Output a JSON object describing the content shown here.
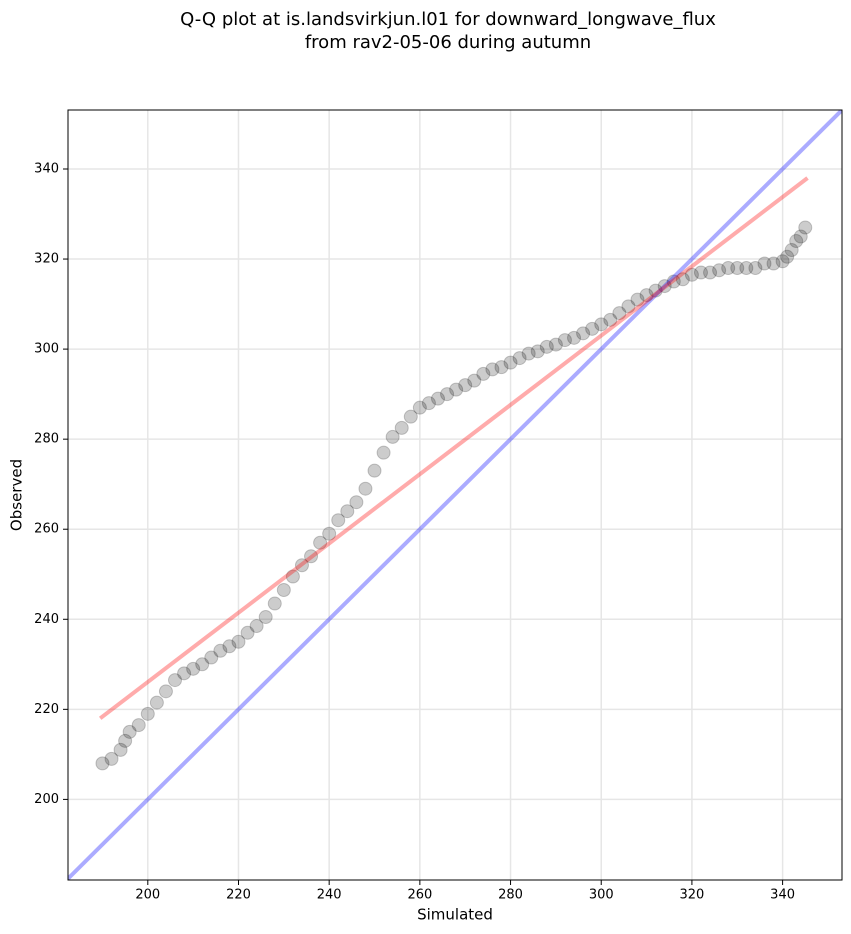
{
  "chart_data": {
    "type": "scatter",
    "title": [
      "Q-Q plot at is.landsvirkjun.l01 for downward_longwave_flux",
      "from rav2-05-06 during autumn"
    ],
    "x_label": "Simulated",
    "y_label": "Observed",
    "xlim": [
      182.4,
      353.1
    ],
    "ylim": [
      182.1,
      353.1
    ],
    "xticks": [
      200,
      220,
      240,
      260,
      280,
      300,
      320,
      340
    ],
    "yticks": [
      200,
      220,
      240,
      260,
      280,
      300,
      320,
      340
    ],
    "grid": true,
    "x": [
      190,
      192,
      194,
      195,
      196,
      198,
      200,
      202,
      204,
      206,
      208,
      210,
      212,
      214,
      216,
      218,
      220,
      222,
      224,
      226,
      228,
      230,
      232,
      234,
      236,
      238,
      240,
      242,
      244,
      246,
      248,
      250,
      252,
      254,
      256,
      258,
      260,
      262,
      264,
      266,
      268,
      270,
      272,
      274,
      276,
      278,
      280,
      282,
      284,
      286,
      288,
      290,
      292,
      294,
      296,
      298,
      300,
      302,
      304,
      306,
      308,
      310,
      312,
      314,
      316,
      318,
      320,
      322,
      324,
      326,
      328,
      330,
      332,
      334,
      336,
      338,
      340,
      341,
      342,
      343,
      344,
      345
    ],
    "series": [
      {
        "color": "#000000",
        "values": [
          208,
          209,
          211,
          213,
          215,
          216.5,
          219,
          221.5,
          224,
          226.5,
          228,
          229,
          230,
          231.5,
          233,
          234,
          235,
          237,
          238.5,
          240.5,
          243.5,
          246.5,
          249.5,
          252,
          254,
          257,
          259,
          262,
          264,
          266,
          269,
          273,
          277,
          280.5,
          282.5,
          285,
          287,
          288,
          289,
          290,
          291,
          292,
          293,
          294.5,
          295.5,
          296,
          297,
          298,
          299,
          299.5,
          300.5,
          301,
          302,
          302.5,
          303.5,
          304.5,
          305.5,
          306.5,
          308,
          309.5,
          311,
          312,
          313,
          314,
          315,
          315.5,
          316.5,
          317,
          317,
          317.5,
          318,
          318,
          318,
          318,
          319,
          319,
          319.5,
          320.5,
          322,
          324,
          325,
          327
        ]
      }
    ],
    "lines": [
      {
        "color": "#0000ff",
        "x": [
          182.4,
          353.1
        ],
        "values": [
          182.4,
          353.1
        ]
      },
      {
        "color": "#ff0000",
        "x": [
          189.5,
          345.5
        ],
        "values": [
          218,
          338
        ]
      }
    ]
  }
}
